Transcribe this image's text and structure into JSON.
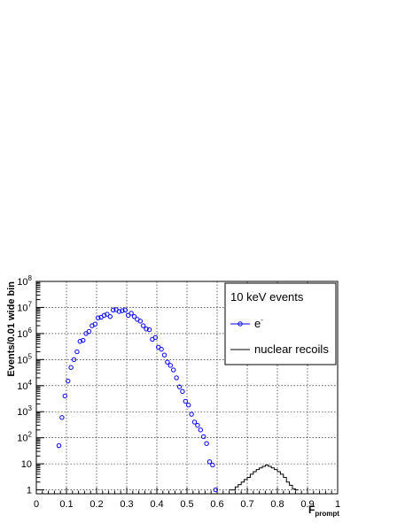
{
  "chart_data": {
    "type": "scatter",
    "title": "",
    "xlabel": "F",
    "xlabel_sub": "prompt",
    "ylabel": "Events/0.01 wide bin",
    "xlim": [
      0,
      1
    ],
    "ylim_log10": [
      -0.15,
      8
    ],
    "y_scale": "log",
    "grid": true,
    "x_ticks": [
      "0",
      "0.1",
      "0.2",
      "0.3",
      "0.4",
      "0.5",
      "0.6",
      "0.7",
      "0.8",
      "0.9",
      "1"
    ],
    "x_tick_values": [
      0,
      0.1,
      0.2,
      0.3,
      0.4,
      0.5,
      0.6,
      0.7,
      0.8,
      0.9,
      1
    ],
    "y_ticks": [
      {
        "label": "1",
        "base": "1",
        "exp": "",
        "value": 1
      },
      {
        "label": "10",
        "base": "10",
        "exp": "",
        "value": 10
      },
      {
        "label": "10^2",
        "base": "10",
        "exp": "2",
        "value": 100
      },
      {
        "label": "10^3",
        "base": "10",
        "exp": "3",
        "value": 1000
      },
      {
        "label": "10^4",
        "base": "10",
        "exp": "4",
        "value": 10000
      },
      {
        "label": "10^5",
        "base": "10",
        "exp": "5",
        "value": 100000
      },
      {
        "label": "10^6",
        "base": "10",
        "exp": "6",
        "value": 1000000
      },
      {
        "label": "10^7",
        "base": "10",
        "exp": "7",
        "value": 10000000
      },
      {
        "label": "10^8",
        "base": "10",
        "exp": "8",
        "value": 100000000
      }
    ],
    "legend": {
      "placement": "top-right",
      "header": "10 keV  events",
      "entries": [
        {
          "label": "e",
          "superscript": "-",
          "style": "marker-line",
          "color": "#0000ff"
        },
        {
          "label": "nuclear recoils",
          "style": "line",
          "color": "#000000"
        }
      ]
    },
    "series": [
      {
        "name": "e-",
        "style": "open-circle",
        "color": "#0000ff",
        "x": [
          0.075,
          0.085,
          0.095,
          0.105,
          0.115,
          0.125,
          0.135,
          0.145,
          0.155,
          0.165,
          0.175,
          0.185,
          0.195,
          0.205,
          0.215,
          0.225,
          0.235,
          0.245,
          0.255,
          0.265,
          0.275,
          0.285,
          0.295,
          0.305,
          0.315,
          0.325,
          0.335,
          0.345,
          0.355,
          0.365,
          0.375,
          0.385,
          0.395,
          0.405,
          0.415,
          0.425,
          0.435,
          0.445,
          0.455,
          0.465,
          0.475,
          0.485,
          0.495,
          0.505,
          0.515,
          0.525,
          0.535,
          0.545,
          0.555,
          0.565,
          0.575,
          0.585,
          0.595
        ],
        "y": [
          50,
          600,
          4000,
          15000,
          50000,
          100000,
          200000,
          500000,
          550000,
          1000000,
          1200000,
          2000000,
          2300000,
          4000000,
          4200000,
          5000000,
          5500000,
          4500000,
          8000000,
          8200000,
          7000000,
          7500000,
          8000000,
          5000000,
          6000000,
          4500000,
          3500000,
          3000000,
          2000000,
          1500000,
          1400000,
          600000,
          700000,
          300000,
          250000,
          150000,
          80000,
          60000,
          40000,
          20000,
          9000,
          6000,
          2500,
          1800,
          800,
          400,
          300,
          200,
          110,
          60,
          12,
          9,
          1
        ]
      },
      {
        "name": "nuclear recoils",
        "style": "histogram",
        "color": "#000000",
        "bin_width": 0.01,
        "x": [
          0.64,
          0.65,
          0.66,
          0.67,
          0.68,
          0.69,
          0.7,
          0.71,
          0.72,
          0.73,
          0.74,
          0.75,
          0.76,
          0.77,
          0.78,
          0.79,
          0.8,
          0.81,
          0.82,
          0.83,
          0.84,
          0.85,
          0.86
        ],
        "y": [
          1,
          1,
          1.3,
          1.6,
          2,
          2.5,
          3,
          4,
          5,
          6,
          7,
          8,
          9,
          8,
          7,
          6,
          5,
          4,
          3,
          2,
          1.5,
          1.1,
          1
        ]
      }
    ]
  }
}
